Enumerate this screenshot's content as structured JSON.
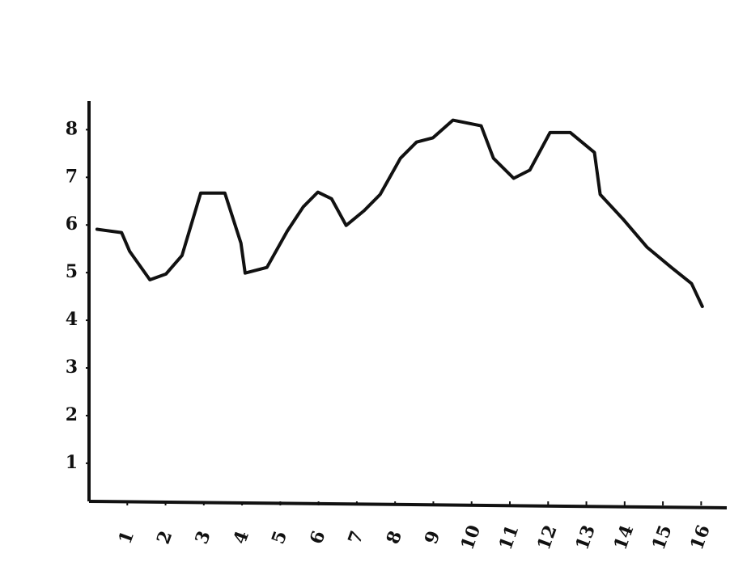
{
  "chart_data": {
    "type": "line",
    "x": [
      0.21,
      0.85,
      1.06,
      1.59,
      2.01,
      2.43,
      2.92,
      3.55,
      3.97,
      4.08,
      4.65,
      5.18,
      5.6,
      5.98,
      6.34,
      6.72,
      7.19,
      7.61,
      8.14,
      8.56,
      8.99,
      9.51,
      10.25,
      10.57,
      11.1,
      11.52,
      12.05,
      12.58,
      13.21,
      13.36,
      13.95,
      14.59,
      15.22,
      15.75,
      16.03
    ],
    "values": [
      5.91,
      5.84,
      5.45,
      4.85,
      4.97,
      5.36,
      6.67,
      6.67,
      5.62,
      4.99,
      5.11,
      5.87,
      6.38,
      6.69,
      6.55,
      5.99,
      6.3,
      6.64,
      7.4,
      7.74,
      7.83,
      8.2,
      8.08,
      7.4,
      6.98,
      7.15,
      7.94,
      7.94,
      7.52,
      6.64,
      6.13,
      5.53,
      5.11,
      4.77,
      4.29
    ],
    "color": "#111111",
    "xlim": [
      0,
      16.5
    ],
    "xticks": [
      1,
      2,
      3,
      4,
      5,
      6,
      7,
      8,
      9,
      10,
      11,
      12,
      13,
      14,
      15,
      16
    ],
    "ylim": [
      0.2,
      8.6
    ],
    "yticks": [
      1,
      2,
      3,
      4,
      5,
      6,
      7,
      8
    ],
    "grid": false
  }
}
